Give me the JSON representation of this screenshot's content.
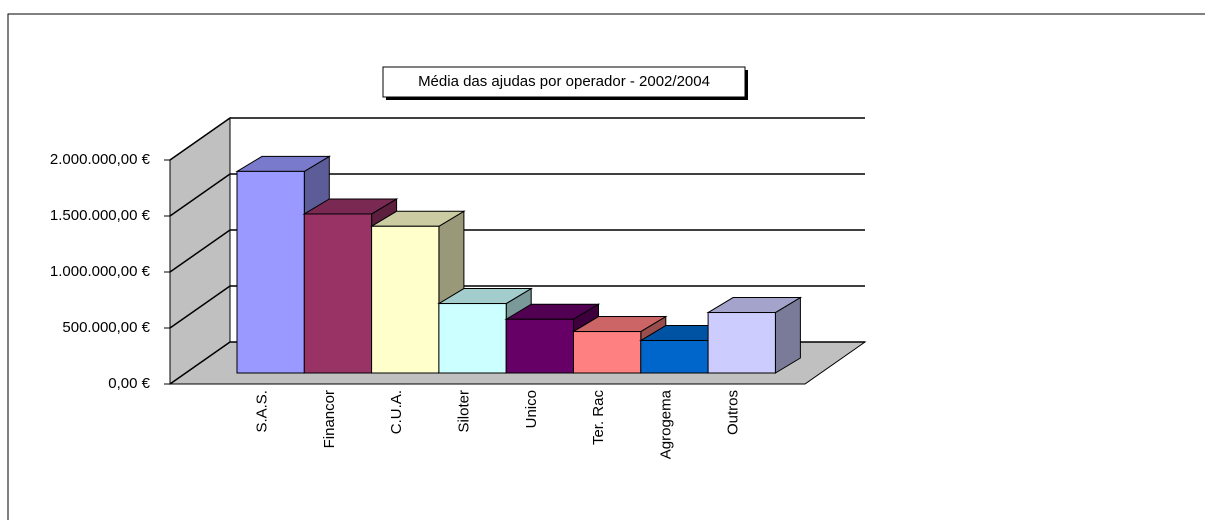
{
  "chart_data": {
    "type": "bar3d",
    "title": "Média das ajudas por operador - 2002/2004",
    "categories": [
      "S.A.S.",
      "Financor",
      "C.U.A.",
      "Siloter",
      "Unico",
      "Ter. Rac",
      "Agrogema",
      "Outros"
    ],
    "values": [
      1800000,
      1420000,
      1310000,
      620000,
      480000,
      370000,
      290000,
      540000
    ],
    "colors": [
      "#9999ff",
      "#993366",
      "#ffffcc",
      "#ccffff",
      "#660066",
      "#ff8080",
      "#0066cc",
      "#ccccff"
    ],
    "ylim": [
      0,
      2000000
    ],
    "yticks": [
      {
        "value": 0,
        "label": "0,00 €"
      },
      {
        "value": 500000,
        "label": "500.000,00 €"
      },
      {
        "value": 1000000,
        "label": "1.000.000,00 €"
      },
      {
        "value": 1500000,
        "label": "1.500.000,00 €"
      },
      {
        "value": 2000000,
        "label": "2.000.000,00 €"
      }
    ],
    "grid": true
  }
}
